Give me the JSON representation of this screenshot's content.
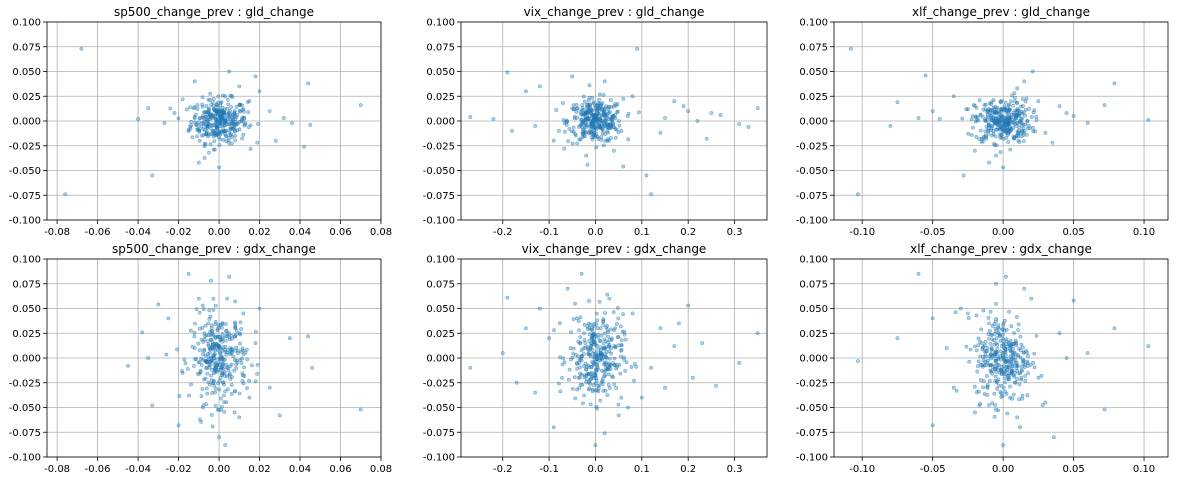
{
  "chart_data": [
    {
      "type": "scatter",
      "title": "sp500_change_prev : gld_change",
      "xlim": [
        -0.085,
        0.08
      ],
      "ylim": [
        -0.1,
        0.1
      ],
      "xticks": [
        "-0.08",
        "-0.06",
        "-0.04",
        "-0.02",
        "0.00",
        "0.02",
        "0.04",
        "0.06",
        "0.08"
      ],
      "yticks": [
        "-0.100",
        "-0.075",
        "-0.050",
        "-0.025",
        "0.000",
        "0.025",
        "0.050",
        "0.075",
        "0.100"
      ],
      "grid": true,
      "series": [
        {
          "x": [
            -0.068,
            -0.076,
            -0.033,
            0.044,
            0.042,
            0.07,
            -0.012,
            0.005,
            0.018,
            0.02,
            0.036,
            0.045,
            -0.04,
            -0.035,
            -0.01,
            0.01,
            0.015,
            -0.005,
            0.0,
            0.025,
            -0.018,
            0.003,
            -0.027,
            -0.022,
            -0.015,
            -0.008,
            0.008,
            0.012,
            0.028,
            0.032
          ],
          "y": [
            0.073,
            -0.074,
            -0.055,
            0.038,
            -0.026,
            0.016,
            0.04,
            0.05,
            0.045,
            0.03,
            -0.002,
            -0.004,
            0.002,
            0.013,
            -0.042,
            0.035,
            0.02,
            -0.032,
            -0.047,
            0.01,
            0.022,
            0.025,
            -0.002,
            0.008,
            -0.01,
            0.005,
            -0.015,
            0.012,
            -0.02,
            0.003
          ]
        }
      ]
    },
    {
      "type": "scatter",
      "title": "vix_change_prev : gld_change",
      "xlim": [
        -0.29,
        0.37
      ],
      "ylim": [
        -0.1,
        0.1
      ],
      "xticks": [
        "-0.2",
        "-0.1",
        "0.0",
        "0.1",
        "0.2",
        "0.3"
      ],
      "yticks": [
        "-0.100",
        "-0.075",
        "-0.050",
        "-0.025",
        "0.000",
        "0.025",
        "0.050",
        "0.075",
        "0.100"
      ],
      "grid": true,
      "series": [
        {
          "x": [
            -0.19,
            -0.27,
            0.09,
            0.11,
            0.12,
            0.35,
            0.31,
            0.33,
            0.25,
            0.22,
            0.2,
            -0.22,
            -0.15,
            -0.12,
            -0.09,
            -0.05,
            0.02,
            0.04,
            0.15,
            0.17,
            -0.18,
            0.27,
            0.06,
            -0.02,
            -0.07,
            -0.13,
            0.08,
            0.14,
            0.19,
            0.24
          ],
          "y": [
            0.049,
            0.004,
            0.073,
            -0.055,
            -0.074,
            0.013,
            -0.003,
            -0.006,
            0.008,
            0.0,
            0.01,
            0.002,
            0.03,
            0.035,
            -0.02,
            0.045,
            0.04,
            -0.03,
            0.003,
            0.02,
            -0.01,
            0.006,
            -0.046,
            -0.035,
            0.018,
            -0.005,
            0.025,
            -0.012,
            0.015,
            -0.018
          ]
        }
      ]
    },
    {
      "type": "scatter",
      "title": "xlf_change_prev : gld_change",
      "xlim": [
        -0.12,
        0.117
      ],
      "ylim": [
        -0.1,
        0.1
      ],
      "xticks": [
        "-0.10",
        "-0.05",
        "0.00",
        "0.05",
        "0.10"
      ],
      "yticks": [
        "-0.100",
        "-0.075",
        "-0.050",
        "-0.025",
        "0.000",
        "0.025",
        "0.050",
        "0.075",
        "0.100"
      ],
      "grid": true,
      "series": [
        {
          "x": [
            -0.108,
            -0.103,
            0.079,
            0.103,
            0.072,
            -0.055,
            -0.028,
            -0.075,
            -0.08,
            -0.05,
            0.021,
            0.04,
            0.06,
            -0.035,
            -0.02,
            0.03,
            0.01,
            -0.01,
            0.05,
            -0.045,
            0.0,
            0.015,
            -0.025,
            0.035,
            -0.06,
            -0.015,
            0.025,
            0.045,
            -0.005,
            0.008
          ],
          "y": [
            0.073,
            -0.074,
            0.038,
            0.001,
            0.016,
            0.046,
            -0.055,
            0.019,
            -0.005,
            0.01,
            0.05,
            0.015,
            -0.002,
            0.025,
            -0.03,
            -0.012,
            0.033,
            -0.042,
            0.005,
            0.002,
            -0.047,
            0.04,
            0.012,
            -0.022,
            0.003,
            -0.018,
            0.02,
            0.008,
            -0.035,
            0.028
          ]
        }
      ]
    },
    {
      "type": "scatter",
      "title": "sp500_change_prev : gdx_change",
      "xlim": [
        -0.085,
        0.08
      ],
      "ylim": [
        -0.1,
        0.1
      ],
      "xticks": [
        "-0.08",
        "-0.06",
        "-0.04",
        "-0.02",
        "0.00",
        "0.02",
        "0.04",
        "0.06",
        "0.08"
      ],
      "yticks": [
        "-0.100",
        "-0.075",
        "-0.050",
        "-0.025",
        "0.000",
        "0.025",
        "0.050",
        "0.075",
        "0.100"
      ],
      "grid": true,
      "series": [
        {
          "x": [
            -0.045,
            -0.038,
            -0.033,
            0.07,
            0.046,
            0.044,
            -0.015,
            -0.004,
            0.005,
            0.003,
            0.01,
            -0.02,
            0.03,
            -0.03,
            0.02,
            -0.01,
            0.015,
            -0.025,
            0.025,
            0.0,
            0.008,
            -0.008,
            0.012,
            -0.018,
            0.035,
            -0.035,
            0.004,
            -0.002,
            0.018,
            -0.012
          ],
          "y": [
            -0.008,
            0.026,
            -0.048,
            -0.052,
            -0.01,
            0.022,
            0.085,
            0.078,
            0.082,
            -0.088,
            -0.06,
            -0.068,
            -0.058,
            0.054,
            0.05,
            0.06,
            -0.04,
            0.04,
            -0.03,
            -0.08,
            0.03,
            -0.05,
            0.045,
            -0.015,
            0.02,
            0.0,
            0.06,
            -0.035,
            0.015,
            0.01
          ]
        }
      ]
    },
    {
      "type": "scatter",
      "title": "vix_change_prev : gdx_change",
      "xlim": [
        -0.29,
        0.37
      ],
      "ylim": [
        -0.1,
        0.1
      ],
      "xticks": [
        "-0.2",
        "-0.1",
        "0.0",
        "0.1",
        "0.2",
        "0.3"
      ],
      "yticks": [
        "-0.100",
        "-0.075",
        "-0.050",
        "-0.025",
        "0.000",
        "0.025",
        "0.050",
        "0.075",
        "0.100"
      ],
      "grid": true,
      "series": [
        {
          "x": [
            -0.19,
            -0.27,
            0.35,
            0.31,
            0.26,
            0.2,
            0.21,
            -0.03,
            0.02,
            0.0,
            -0.09,
            -0.15,
            -0.12,
            0.1,
            0.14,
            0.17,
            -0.06,
            0.05,
            0.08,
            -0.2,
            0.23,
            -0.17,
            0.12,
            -0.04,
            0.03,
            0.15,
            -0.1,
            0.07,
            -0.13,
            0.18
          ],
          "y": [
            0.061,
            -0.01,
            0.025,
            -0.005,
            -0.028,
            0.053,
            -0.02,
            0.085,
            -0.076,
            -0.088,
            -0.07,
            0.03,
            0.05,
            -0.04,
            0.03,
            0.012,
            0.07,
            -0.058,
            0.045,
            0.005,
            0.015,
            -0.025,
            -0.01,
            0.04,
            0.06,
            -0.03,
            0.02,
            -0.05,
            -0.035,
            0.035
          ]
        }
      ]
    },
    {
      "type": "scatter",
      "title": "xlf_change_prev : gdx_change",
      "xlim": [
        -0.12,
        0.117
      ],
      "ylim": [
        -0.1,
        0.1
      ],
      "xticks": [
        "-0.10",
        "-0.05",
        "0.00",
        "0.05",
        "0.10"
      ],
      "yticks": [
        "-0.100",
        "-0.075",
        "-0.050",
        "-0.025",
        "0.000",
        "0.025",
        "0.050",
        "0.075",
        "0.100"
      ],
      "grid": true,
      "series": [
        {
          "x": [
            -0.103,
            -0.06,
            -0.05,
            -0.05,
            0.103,
            0.079,
            0.072,
            0.05,
            0.0,
            0.002,
            0.036,
            0.015,
            -0.03,
            -0.04,
            0.03,
            -0.02,
            0.02,
            -0.01,
            0.01,
            -0.075,
            0.04,
            -0.035,
            0.045,
            -0.025,
            0.025,
            -0.015,
            0.06,
            0.005,
            -0.005,
            0.012
          ],
          "y": [
            -0.003,
            0.085,
            -0.068,
            0.04,
            0.012,
            0.03,
            -0.052,
            0.058,
            -0.088,
            0.082,
            -0.08,
            0.07,
            0.05,
            0.01,
            -0.045,
            -0.055,
            0.06,
            0.035,
            -0.06,
            0.02,
            0.025,
            -0.03,
            0.0,
            0.045,
            -0.02,
            0.015,
            0.005,
            -0.04,
            0.075,
            -0.07
          ]
        }
      ]
    }
  ]
}
